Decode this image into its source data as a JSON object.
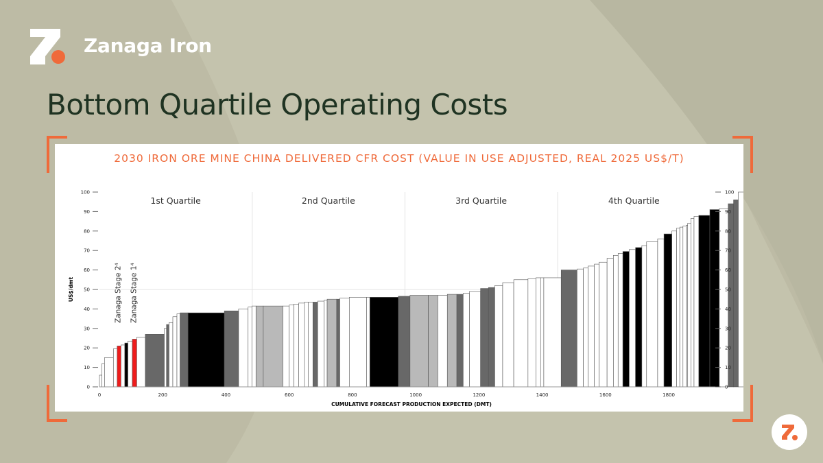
{
  "brand": {
    "name": "Zanaga Iron",
    "logo_icon": "zanaga-z-logo-icon",
    "colors": {
      "accent": "#ef6a3a",
      "title": "#1f3322",
      "background": "#bdbba5"
    }
  },
  "page_title": "Bottom Quartile Operating Costs",
  "chart_data": {
    "type": "bar",
    "variant": "cost-curve",
    "title": "2030 IRON ORE MINE CHINA DELIVERED CFR COST  (VALUE IN USE ADJUSTED, REAL 2025 US$/T)",
    "xlabel": "CUMULATIVE FORECAST PRODUCTION EXPECTED (DMT)",
    "ylabel": "US$/dmt",
    "xlim": [
      0,
      1930
    ],
    "ylim": [
      0,
      100
    ],
    "x_ticks": [
      0,
      200,
      400,
      600,
      800,
      1000,
      1200,
      1400,
      1600,
      1800
    ],
    "y_ticks": [
      0,
      10,
      20,
      30,
      40,
      50,
      60,
      70,
      80,
      90,
      100
    ],
    "grid": {
      "horizontal_at": 50,
      "quartile_dividers": [
        483,
        966,
        1449
      ]
    },
    "quartile_labels": [
      {
        "label": "1st Quartile",
        "x": 241
      },
      {
        "label": "2nd Quartile",
        "x": 724
      },
      {
        "label": "3rd Quartile",
        "x": 1207
      },
      {
        "label": "4th Quartile",
        "x": 1690
      }
    ],
    "annotations": [
      {
        "label": "Zanaga Stage 2⁴",
        "x": 60
      },
      {
        "label": "Zanaga Stage 1⁴",
        "x": 110
      }
    ],
    "fill_colors": {
      "w": "#ffffff",
      "l": "#b9b9b9",
      "d": "#686868",
      "k": "#000000",
      "r": "#ee1c1c"
    },
    "bars": [
      [
        0,
        8,
        6,
        "w"
      ],
      [
        8,
        16,
        12,
        "w"
      ],
      [
        16,
        44,
        15,
        "w"
      ],
      [
        44,
        56,
        19.5,
        "w"
      ],
      [
        56,
        68,
        21,
        "r"
      ],
      [
        68,
        80,
        21.5,
        "w"
      ],
      [
        80,
        90,
        22.5,
        "k"
      ],
      [
        90,
        104,
        23.5,
        "w"
      ],
      [
        104,
        118,
        24.5,
        "r"
      ],
      [
        118,
        145,
        25.5,
        "w"
      ],
      [
        145,
        205,
        27,
        "d"
      ],
      [
        205,
        212,
        30,
        "w"
      ],
      [
        212,
        220,
        32,
        "d"
      ],
      [
        220,
        232,
        33,
        "w"
      ],
      [
        232,
        245,
        36,
        "w"
      ],
      [
        245,
        255,
        37.5,
        "w"
      ],
      [
        255,
        280,
        38,
        "d"
      ],
      [
        280,
        395,
        38,
        "k"
      ],
      [
        395,
        440,
        39,
        "d"
      ],
      [
        440,
        470,
        40,
        "w"
      ],
      [
        470,
        482,
        41,
        "w"
      ],
      [
        482,
        495,
        41.5,
        "w"
      ],
      [
        495,
        518,
        41.5,
        "l"
      ],
      [
        518,
        580,
        41.5,
        "l"
      ],
      [
        580,
        600,
        41.5,
        "w"
      ],
      [
        600,
        615,
        42,
        "w"
      ],
      [
        615,
        630,
        42.5,
        "w"
      ],
      [
        630,
        648,
        43,
        "w"
      ],
      [
        648,
        660,
        43.5,
        "w"
      ],
      [
        660,
        675,
        43.5,
        "w"
      ],
      [
        675,
        690,
        43.5,
        "d"
      ],
      [
        690,
        710,
        44,
        "w"
      ],
      [
        710,
        720,
        44.5,
        "w"
      ],
      [
        720,
        750,
        45,
        "l"
      ],
      [
        750,
        760,
        45,
        "d"
      ],
      [
        760,
        790,
        45.5,
        "w"
      ],
      [
        790,
        845,
        46,
        "w"
      ],
      [
        845,
        855,
        46,
        "w"
      ],
      [
        855,
        945,
        46,
        "k"
      ],
      [
        945,
        982,
        46.5,
        "d"
      ],
      [
        982,
        1040,
        47,
        "l"
      ],
      [
        1040,
        1070,
        47,
        "l"
      ],
      [
        1070,
        1100,
        47,
        "w"
      ],
      [
        1100,
        1130,
        47.5,
        "l"
      ],
      [
        1130,
        1150,
        47.5,
        "d"
      ],
      [
        1150,
        1170,
        48,
        "w"
      ],
      [
        1170,
        1205,
        49,
        "w"
      ],
      [
        1205,
        1230,
        50.5,
        "d"
      ],
      [
        1230,
        1250,
        51,
        "d"
      ],
      [
        1250,
        1275,
        52,
        "w"
      ],
      [
        1275,
        1310,
        53.5,
        "w"
      ],
      [
        1310,
        1355,
        55,
        "w"
      ],
      [
        1355,
        1380,
        55.5,
        "w"
      ],
      [
        1380,
        1395,
        56,
        "w"
      ],
      [
        1395,
        1405,
        56,
        "w"
      ],
      [
        1405,
        1460,
        56,
        "w"
      ],
      [
        1460,
        1510,
        60,
        "d"
      ],
      [
        1510,
        1530,
        60.5,
        "w"
      ],
      [
        1530,
        1545,
        61,
        "w"
      ],
      [
        1545,
        1565,
        62,
        "w"
      ],
      [
        1565,
        1580,
        63,
        "w"
      ],
      [
        1580,
        1605,
        64,
        "w"
      ],
      [
        1605,
        1625,
        66,
        "w"
      ],
      [
        1625,
        1640,
        67.5,
        "w"
      ],
      [
        1640,
        1655,
        68.5,
        "w"
      ],
      [
        1655,
        1675,
        69.5,
        "k"
      ],
      [
        1675,
        1695,
        70.5,
        "w"
      ],
      [
        1695,
        1715,
        71.5,
        "k"
      ],
      [
        1715,
        1730,
        72.5,
        "w"
      ],
      [
        1730,
        1765,
        74.5,
        "w"
      ],
      [
        1765,
        1785,
        76,
        "w"
      ],
      [
        1785,
        1810,
        78.5,
        "k"
      ],
      [
        1810,
        1825,
        80,
        "w"
      ],
      [
        1825,
        1835,
        81.5,
        "w"
      ],
      [
        1835,
        1845,
        82,
        "w"
      ],
      [
        1845,
        1855,
        82.5,
        "w"
      ],
      [
        1855,
        1860,
        83,
        "w"
      ],
      [
        1860,
        1870,
        84,
        "w"
      ],
      [
        1870,
        1880,
        86.5,
        "w"
      ],
      [
        1880,
        1895,
        87.5,
        "w"
      ],
      [
        1895,
        1930,
        88,
        "k"
      ],
      [
        1930,
        1960,
        91,
        "k"
      ],
      [
        1960,
        1988,
        91.5,
        "w"
      ],
      [
        1988,
        2005,
        94,
        "d"
      ],
      [
        2005,
        2020,
        96,
        "d"
      ],
      [
        2020,
        2040,
        100,
        "w"
      ]
    ]
  }
}
